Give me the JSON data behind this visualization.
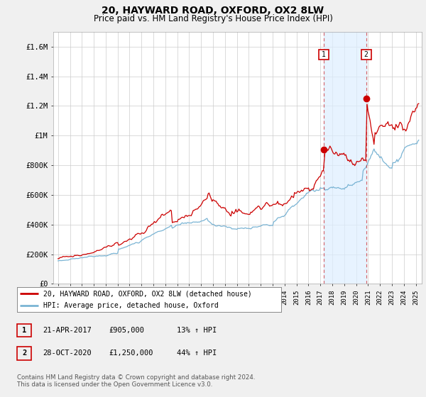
{
  "title": "20, HAYWARD ROAD, OXFORD, OX2 8LW",
  "subtitle": "Price paid vs. HM Land Registry's House Price Index (HPI)",
  "title_fontsize": 10,
  "subtitle_fontsize": 8.5,
  "ylabel_ticks": [
    "£0",
    "£200K",
    "£400K",
    "£600K",
    "£800K",
    "£1M",
    "£1.2M",
    "£1.4M",
    "£1.6M"
  ],
  "ylim": [
    0,
    1700000
  ],
  "ytick_vals": [
    0,
    200000,
    400000,
    600000,
    800000,
    1000000,
    1200000,
    1400000,
    1600000
  ],
  "sale1_year_f": 2017.3,
  "sale1_price": 905000,
  "sale2_year_f": 2020.83,
  "sale2_price": 1250000,
  "legend_entry1": "20, HAYWARD ROAD, OXFORD, OX2 8LW (detached house)",
  "legend_entry2": "HPI: Average price, detached house, Oxford",
  "table_row1": [
    "1",
    "21-APR-2017",
    "£905,000",
    "13% ↑ HPI"
  ],
  "table_row2": [
    "2",
    "28-OCT-2020",
    "£1,250,000",
    "44% ↑ HPI"
  ],
  "footnote": "Contains HM Land Registry data © Crown copyright and database right 2024.\nThis data is licensed under the Open Government Licence v3.0.",
  "line_color_red": "#cc0000",
  "line_color_blue": "#7ab4d4",
  "shade_color": "#ddeeff",
  "bg_color": "#f0f0f0",
  "plot_bg_color": "#ffffff"
}
